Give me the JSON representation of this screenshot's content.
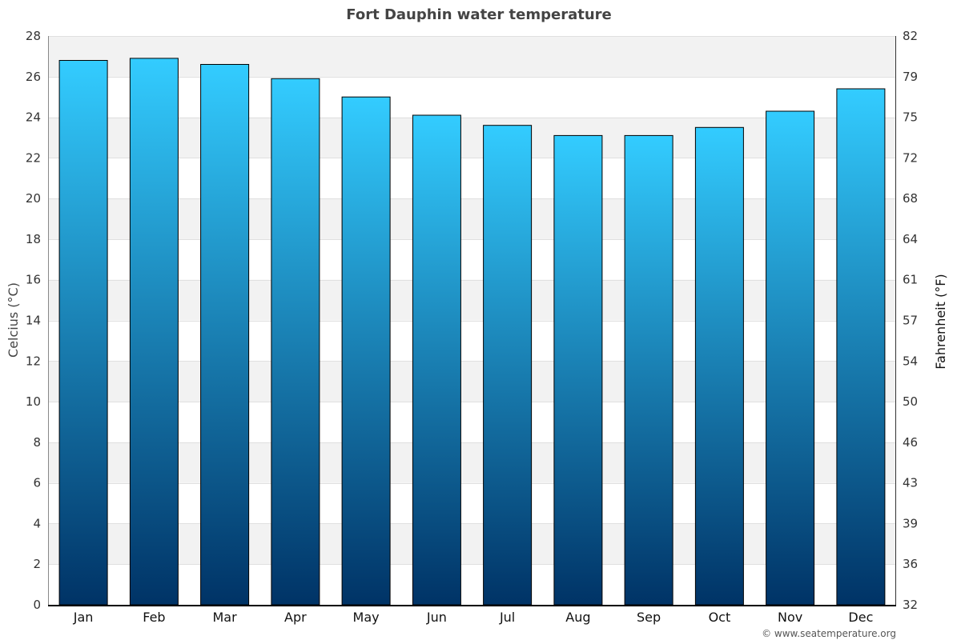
{
  "chart_data": {
    "type": "bar",
    "title": "Fort Dauphin water temperature",
    "categories": [
      "Jan",
      "Feb",
      "Mar",
      "Apr",
      "May",
      "Jun",
      "Jul",
      "Aug",
      "Sep",
      "Oct",
      "Nov",
      "Dec"
    ],
    "values": [
      26.8,
      26.9,
      26.6,
      25.9,
      25.0,
      24.1,
      23.6,
      23.1,
      23.1,
      23.5,
      24.3,
      25.4
    ],
    "ylabel": "Celcius (°C)",
    "ylabel_right": "Fahrenheit (°F)",
    "ylim": [
      0,
      28
    ],
    "yticks": [
      "0",
      "2",
      "4",
      "6",
      "8",
      "10",
      "12",
      "14",
      "16",
      "18",
      "20",
      "22",
      "24",
      "26",
      "28"
    ],
    "yticks_right": [
      "32",
      "36",
      "39",
      "43",
      "46",
      "50",
      "54",
      "57",
      "61",
      "64",
      "68",
      "72",
      "75",
      "79",
      "82"
    ],
    "grid": true,
    "legend": "none",
    "colors": {
      "bar_top": "#33ccff",
      "bar_bottom": "#003366",
      "band": "#f2f2f2",
      "bar_stroke": "#000000"
    }
  },
  "credit": "© www.seatemperature.org"
}
